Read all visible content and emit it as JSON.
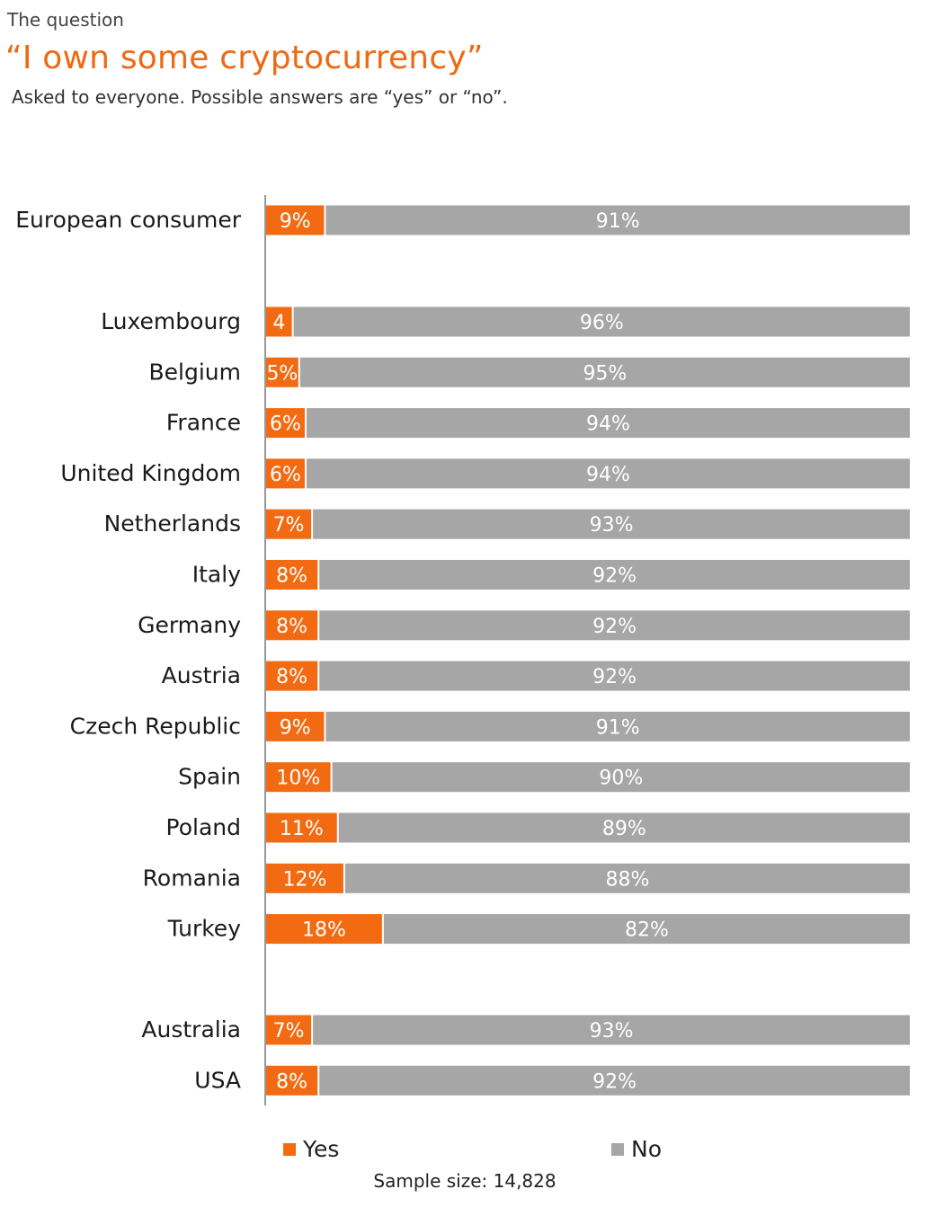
{
  "header": {
    "kicker": "The question",
    "title": "“I own some cryptocurrency”",
    "subtitle": "Asked to everyone. Possible answers are “yes” or “no”."
  },
  "colors": {
    "yes": "#f26b12",
    "no": "#a6a6a6",
    "axis": "#999999"
  },
  "chart_data": {
    "type": "bar",
    "orientation": "horizontal",
    "stacked": true,
    "percent": true,
    "title": "“I own some cryptocurrency”",
    "categories": [
      "European consumer",
      "Luxembourg",
      "Belgium",
      "France",
      "United Kingdom",
      "Netherlands",
      "Italy",
      "Germany",
      "Austria",
      "Czech Republic",
      "Spain",
      "Poland",
      "Romania",
      "Turkey",
      "Australia",
      "USA"
    ],
    "groups": [
      [
        0
      ],
      [
        1,
        2,
        3,
        4,
        5,
        6,
        7,
        8,
        9,
        10,
        11,
        12,
        13
      ],
      [
        14,
        15
      ]
    ],
    "series": [
      {
        "name": "Yes",
        "values": [
          9,
          4,
          5,
          6,
          6,
          7,
          8,
          8,
          8,
          9,
          10,
          11,
          12,
          18,
          7,
          8
        ],
        "labels": [
          "9%",
          "4",
          "5%",
          "6%",
          "6%",
          "7%",
          "8%",
          "8%",
          "8%",
          "9%",
          "10%",
          "11%",
          "12%",
          "18%",
          "7%",
          "8%"
        ]
      },
      {
        "name": "No",
        "values": [
          91,
          96,
          95,
          94,
          94,
          93,
          92,
          92,
          92,
          91,
          90,
          89,
          88,
          82,
          93,
          92
        ],
        "labels": [
          "91%",
          "96%",
          "95%",
          "94%",
          "94%",
          "93%",
          "92%",
          "92%",
          "92%",
          "91%",
          "90%",
          "89%",
          "88%",
          "82%",
          "93%",
          "92%"
        ]
      }
    ],
    "xlim": [
      0,
      100
    ],
    "grid": false,
    "legend_position": "bottom"
  },
  "legend": {
    "yes_label": "Yes",
    "no_label": "No"
  },
  "footer": {
    "sample": "Sample size: 14,828"
  }
}
